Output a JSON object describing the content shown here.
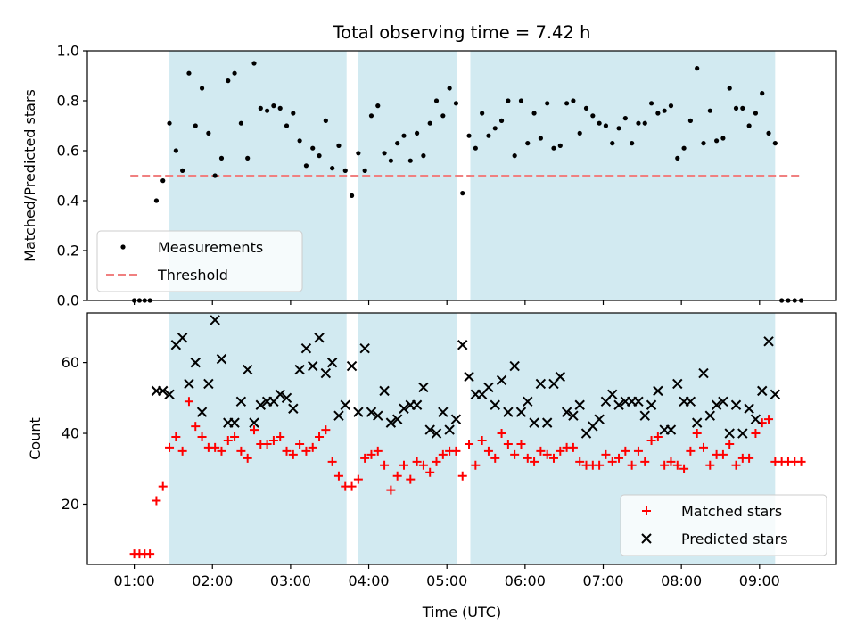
{
  "title": "Total observing time = 7.42 h",
  "xlabel": "Time (UTC)",
  "x_ticks": [
    "01:00",
    "02:00",
    "03:00",
    "04:00",
    "05:00",
    "06:00",
    "07:00",
    "08:00",
    "09:00"
  ],
  "colors": {
    "shade": "#add8e6",
    "measurements": "#000000",
    "threshold": "#f08080",
    "matched": "#ff0000",
    "predicted": "#000000"
  },
  "chart_data": [
    {
      "type": "scatter",
      "ylabel": "Matched/Predicted stars",
      "ylim": [
        0,
        1.0
      ],
      "y_ticks": [
        "0.0",
        "0.2",
        "0.4",
        "0.6",
        "0.8",
        "1.0"
      ],
      "x_ticks_labeled": false,
      "grid": false,
      "legend": {
        "placement": "lower-left",
        "entries": [
          "Measurements",
          "Threshold"
        ]
      },
      "shaded_time_ranges": [
        [
          "01:27",
          "03:43"
        ],
        [
          "03:52",
          "05:08"
        ],
        [
          "05:18",
          "09:12"
        ]
      ],
      "threshold": {
        "name": "Threshold",
        "value": 0.5,
        "x_range": [
          "00:57",
          "09:33"
        ]
      },
      "series": [
        {
          "name": "Measurements",
          "x": [
            "01:00",
            "01:04",
            "01:08",
            "01:12",
            "01:17",
            "01:22",
            "01:27",
            "01:32",
            "01:37",
            "01:42",
            "01:47",
            "01:52",
            "01:57",
            "02:02",
            "02:07",
            "02:12",
            "02:17",
            "02:22",
            "02:27",
            "02:32",
            "02:37",
            "02:42",
            "02:47",
            "02:52",
            "02:57",
            "03:02",
            "03:07",
            "03:12",
            "03:17",
            "03:22",
            "03:27",
            "03:32",
            "03:37",
            "03:42",
            "03:47",
            "03:52",
            "03:57",
            "04:02",
            "04:07",
            "04:12",
            "04:17",
            "04:22",
            "04:27",
            "04:32",
            "04:37",
            "04:42",
            "04:47",
            "04:52",
            "04:57",
            "05:02",
            "05:07",
            "05:12",
            "05:17",
            "05:22",
            "05:27",
            "05:32",
            "05:37",
            "05:42",
            "05:47",
            "05:52",
            "05:57",
            "06:02",
            "06:07",
            "06:12",
            "06:17",
            "06:22",
            "06:27",
            "06:32",
            "06:37",
            "06:42",
            "06:47",
            "06:52",
            "06:57",
            "07:02",
            "07:07",
            "07:12",
            "07:17",
            "07:22",
            "07:27",
            "07:32",
            "07:37",
            "07:42",
            "07:47",
            "07:52",
            "07:57",
            "08:02",
            "08:07",
            "08:12",
            "08:17",
            "08:22",
            "08:27",
            "08:32",
            "08:37",
            "08:42",
            "08:47",
            "08:52",
            "08:57",
            "09:02",
            "09:07",
            "09:12",
            "09:17",
            "09:22",
            "09:27",
            "09:32"
          ],
          "y": [
            0,
            0,
            0,
            0,
            0.4,
            0.48,
            0.71,
            0.6,
            0.52,
            0.91,
            0.7,
            0.85,
            0.67,
            0.5,
            0.57,
            0.88,
            0.91,
            0.71,
            0.57,
            0.95,
            0.77,
            0.76,
            0.78,
            0.77,
            0.7,
            0.75,
            0.64,
            0.54,
            0.61,
            0.58,
            0.72,
            0.53,
            0.62,
            0.52,
            0.42,
            0.59,
            0.52,
            0.74,
            0.78,
            0.59,
            0.56,
            0.63,
            0.66,
            0.56,
            0.67,
            0.58,
            0.71,
            0.8,
            0.74,
            0.85,
            0.79,
            0.43,
            0.66,
            0.61,
            0.75,
            0.66,
            0.69,
            0.72,
            0.8,
            0.58,
            0.8,
            0.63,
            0.75,
            0.65,
            0.79,
            0.61,
            0.62,
            0.79,
            0.8,
            0.67,
            0.77,
            0.74,
            0.71,
            0.7,
            0.63,
            0.69,
            0.73,
            0.63,
            0.71,
            0.71,
            0.79,
            0.75,
            0.76,
            0.78,
            0.57,
            0.61,
            0.72,
            0.93,
            0.63,
            0.76,
            0.64,
            0.65,
            0.85,
            0.77,
            0.77,
            0.7,
            0.75,
            0.83,
            0.67,
            0.63,
            0,
            0,
            0,
            0
          ]
        }
      ]
    },
    {
      "type": "scatter",
      "ylabel": "Count",
      "ylim": [
        3,
        74
      ],
      "y_ticks": [
        "20",
        "40",
        "60"
      ],
      "grid": false,
      "legend": {
        "placement": "lower-right",
        "entries": [
          "Matched stars",
          "Predicted stars"
        ]
      },
      "shaded_time_ranges": [
        [
          "01:27",
          "03:43"
        ],
        [
          "03:52",
          "05:08"
        ],
        [
          "05:18",
          "09:12"
        ]
      ],
      "series": [
        {
          "name": "Matched stars",
          "marker": "+",
          "x": [
            "01:00",
            "01:04",
            "01:08",
            "01:12",
            "01:17",
            "01:22",
            "01:27",
            "01:32",
            "01:37",
            "01:42",
            "01:47",
            "01:52",
            "01:57",
            "02:02",
            "02:07",
            "02:12",
            "02:17",
            "02:22",
            "02:27",
            "02:32",
            "02:37",
            "02:42",
            "02:47",
            "02:52",
            "02:57",
            "03:02",
            "03:07",
            "03:12",
            "03:17",
            "03:22",
            "03:27",
            "03:32",
            "03:37",
            "03:42",
            "03:47",
            "03:52",
            "03:57",
            "04:02",
            "04:07",
            "04:12",
            "04:17",
            "04:22",
            "04:27",
            "04:32",
            "04:37",
            "04:42",
            "04:47",
            "04:52",
            "04:57",
            "05:02",
            "05:07",
            "05:12",
            "05:17",
            "05:22",
            "05:27",
            "05:32",
            "05:37",
            "05:42",
            "05:47",
            "05:52",
            "05:57",
            "06:02",
            "06:07",
            "06:12",
            "06:17",
            "06:22",
            "06:27",
            "06:32",
            "06:37",
            "06:42",
            "06:47",
            "06:52",
            "06:57",
            "07:02",
            "07:07",
            "07:12",
            "07:17",
            "07:22",
            "07:27",
            "07:32",
            "07:37",
            "07:42",
            "07:47",
            "07:52",
            "07:57",
            "08:02",
            "08:07",
            "08:12",
            "08:17",
            "08:22",
            "08:27",
            "08:32",
            "08:37",
            "08:42",
            "08:47",
            "08:52",
            "08:57",
            "09:02",
            "09:07",
            "09:12",
            "09:17",
            "09:22",
            "09:27",
            "09:32"
          ],
          "y": [
            6,
            6,
            6,
            6,
            21,
            25,
            36,
            39,
            35,
            49,
            42,
            39,
            36,
            36,
            35,
            38,
            39,
            35,
            33,
            41,
            37,
            37,
            38,
            39,
            35,
            34,
            37,
            35,
            36,
            39,
            41,
            32,
            28,
            25,
            25,
            27,
            33,
            34,
            35,
            31,
            24,
            28,
            31,
            27,
            32,
            31,
            29,
            32,
            34,
            35,
            35,
            28,
            37,
            31,
            38,
            35,
            33,
            40,
            37,
            34,
            37,
            33,
            32,
            35,
            34,
            33,
            35,
            36,
            36,
            32,
            31,
            31,
            31,
            34,
            32,
            33,
            35,
            31,
            35,
            32,
            38,
            39,
            31,
            32,
            31,
            30,
            35,
            40,
            36,
            31,
            34,
            34,
            37,
            31,
            33,
            33,
            40,
            43,
            44,
            32,
            32,
            32,
            32,
            32
          ]
        },
        {
          "name": "Predicted stars",
          "marker": "x",
          "x": [
            "01:17",
            "01:22",
            "01:27",
            "01:32",
            "01:37",
            "01:42",
            "01:47",
            "01:52",
            "01:57",
            "02:02",
            "02:07",
            "02:12",
            "02:17",
            "02:22",
            "02:27",
            "02:32",
            "02:37",
            "02:42",
            "02:47",
            "02:52",
            "02:57",
            "03:02",
            "03:07",
            "03:12",
            "03:17",
            "03:22",
            "03:27",
            "03:32",
            "03:37",
            "03:42",
            "03:47",
            "03:52",
            "03:57",
            "04:02",
            "04:07",
            "04:12",
            "04:17",
            "04:22",
            "04:27",
            "04:32",
            "04:37",
            "04:42",
            "04:47",
            "04:52",
            "04:57",
            "05:02",
            "05:07",
            "05:12",
            "05:17",
            "05:22",
            "05:27",
            "05:32",
            "05:37",
            "05:42",
            "05:47",
            "05:52",
            "05:57",
            "06:02",
            "06:07",
            "06:12",
            "06:17",
            "06:22",
            "06:27",
            "06:32",
            "06:37",
            "06:42",
            "06:47",
            "06:52",
            "06:57",
            "07:02",
            "07:07",
            "07:12",
            "07:17",
            "07:22",
            "07:27",
            "07:32",
            "07:37",
            "07:42",
            "07:47",
            "07:52",
            "07:57",
            "08:02",
            "08:07",
            "08:12",
            "08:17",
            "08:22",
            "08:27",
            "08:32",
            "08:37",
            "08:42",
            "08:47",
            "08:52",
            "08:57",
            "09:02",
            "09:07",
            "09:12"
          ],
          "y": [
            52,
            52,
            51,
            65,
            67,
            54,
            60,
            46,
            54,
            72,
            61,
            43,
            43,
            49,
            58,
            43,
            48,
            49,
            49,
            51,
            50,
            47,
            58,
            64,
            59,
            67,
            57,
            60,
            45,
            48,
            59,
            46,
            64,
            46,
            45,
            52,
            43,
            44,
            47,
            48,
            48,
            53,
            41,
            40,
            46,
            41,
            44,
            65,
            56,
            51,
            51,
            53,
            48,
            55,
            46,
            59,
            46,
            49,
            43,
            54,
            43,
            54,
            56,
            46,
            45,
            48,
            40,
            42,
            44,
            49,
            51,
            48,
            49,
            49,
            49,
            45,
            48,
            52,
            41,
            41,
            54,
            49,
            49,
            43,
            57,
            45,
            48,
            49,
            40,
            48,
            40,
            47,
            44,
            52,
            66,
            51
          ]
        }
      ]
    }
  ]
}
